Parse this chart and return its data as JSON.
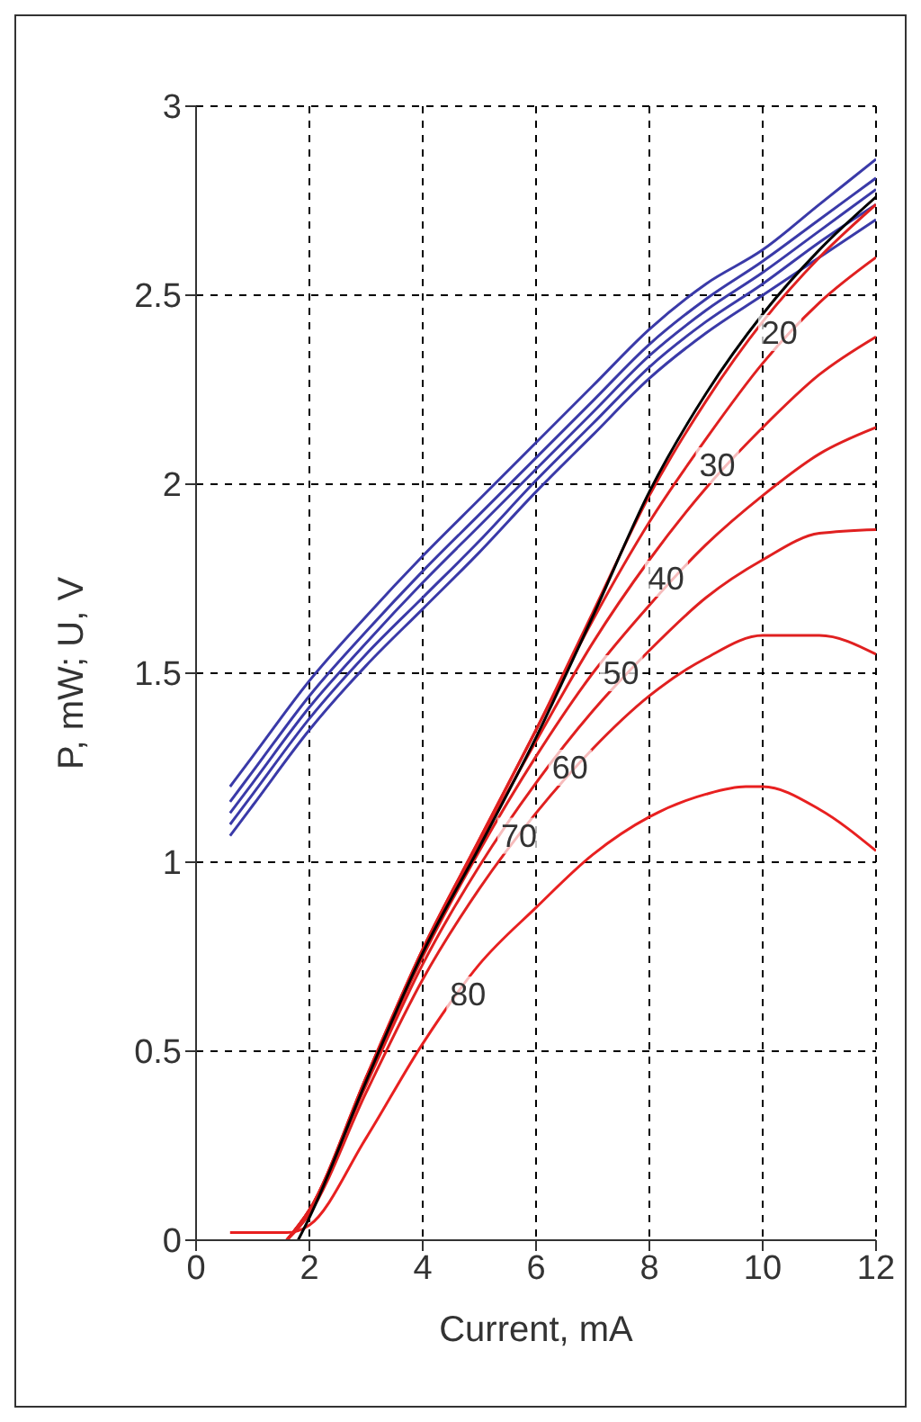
{
  "chart_data": {
    "type": "line",
    "xlabel": "Current, mA",
    "ylabel": "P, mW; U, V",
    "xlim": [
      0,
      12
    ],
    "ylim": [
      0,
      3
    ],
    "xticks": [
      0,
      2,
      4,
      6,
      8,
      10,
      12
    ],
    "yticks": [
      0,
      0.5,
      1,
      1.5,
      2,
      2.5,
      3
    ],
    "grid": true,
    "legend": false,
    "marker": "none",
    "line_style": "solid",
    "series": [
      {
        "color": "#3a3aa8",
        "x": [
          0.6,
          1,
          2,
          3,
          4,
          5,
          6,
          7,
          8,
          9,
          10,
          11,
          12
        ],
        "values": [
          1.07,
          1.15,
          1.35,
          1.52,
          1.67,
          1.82,
          1.98,
          2.13,
          2.28,
          2.4,
          2.5,
          2.6,
          2.7
        ]
      },
      {
        "color": "#3a3aa8",
        "x": [
          0.6,
          1,
          2,
          3,
          4,
          5,
          6,
          7,
          8,
          9,
          10,
          11,
          12
        ],
        "values": [
          1.1,
          1.18,
          1.38,
          1.55,
          1.7,
          1.85,
          2.01,
          2.16,
          2.31,
          2.43,
          2.53,
          2.64,
          2.74
        ]
      },
      {
        "color": "#3a3aa8",
        "x": [
          0.6,
          1,
          2,
          3,
          4,
          5,
          6,
          7,
          8,
          9,
          10,
          11,
          12
        ],
        "values": [
          1.13,
          1.21,
          1.41,
          1.58,
          1.74,
          1.89,
          2.04,
          2.19,
          2.34,
          2.46,
          2.56,
          2.67,
          2.78
        ]
      },
      {
        "color": "#3a3aa8",
        "x": [
          0.6,
          1,
          2,
          3,
          4,
          5,
          6,
          7,
          8,
          9,
          10,
          11,
          12
        ],
        "values": [
          1.16,
          1.24,
          1.44,
          1.61,
          1.77,
          1.92,
          2.07,
          2.22,
          2.37,
          2.49,
          2.59,
          2.7,
          2.81
        ]
      },
      {
        "color": "#3a3aa8",
        "x": [
          0.6,
          1,
          2,
          3,
          4,
          5,
          6,
          7,
          8,
          9,
          10,
          11,
          12
        ],
        "values": [
          1.2,
          1.28,
          1.48,
          1.65,
          1.81,
          1.96,
          2.11,
          2.26,
          2.41,
          2.53,
          2.62,
          2.74,
          2.86
        ]
      },
      {
        "color": "#e02020",
        "x": [
          1.6,
          2,
          3,
          4,
          5,
          6,
          7,
          8,
          9,
          10,
          11,
          12
        ],
        "values": [
          0,
          0.07,
          0.43,
          0.77,
          1.06,
          1.35,
          1.66,
          1.97,
          2.22,
          2.43,
          2.6,
          2.74
        ]
      },
      {
        "color": "#e02020",
        "x": [
          1.6,
          2,
          3,
          4,
          5,
          6,
          7,
          8,
          9,
          10,
          11,
          12
        ],
        "values": [
          0,
          0.08,
          0.43,
          0.77,
          1.06,
          1.35,
          1.64,
          1.9,
          2.12,
          2.32,
          2.48,
          2.6
        ]
      },
      {
        "color": "#e02020",
        "x": [
          1.6,
          2,
          3,
          4,
          5,
          6,
          7,
          8,
          9,
          10,
          11,
          12
        ],
        "values": [
          0,
          0.08,
          0.43,
          0.76,
          1.05,
          1.32,
          1.58,
          1.8,
          1.99,
          2.15,
          2.29,
          2.39
        ]
      },
      {
        "color": "#e02020",
        "x": [
          1.6,
          2,
          3,
          4,
          5,
          6,
          7,
          8,
          9,
          10,
          11,
          12
        ],
        "values": [
          0,
          0.08,
          0.42,
          0.75,
          1.03,
          1.28,
          1.5,
          1.68,
          1.84,
          1.97,
          2.08,
          2.15
        ]
      },
      {
        "color": "#e02020",
        "x": [
          1.6,
          2,
          3,
          4,
          5,
          6,
          7,
          8,
          9,
          10,
          11,
          12
        ],
        "values": [
          0,
          0.08,
          0.41,
          0.73,
          0.99,
          1.21,
          1.4,
          1.56,
          1.7,
          1.8,
          1.87,
          1.88
        ]
      },
      {
        "color": "#e02020",
        "x": [
          1.6,
          2,
          3,
          4,
          5,
          6,
          7,
          8,
          9,
          10,
          11,
          12
        ],
        "values": [
          0,
          0.07,
          0.39,
          0.69,
          0.93,
          1.13,
          1.3,
          1.44,
          1.54,
          1.6,
          1.6,
          1.55
        ]
      },
      {
        "color": "#e82020",
        "x": [
          0.6,
          1.6,
          2,
          3,
          4,
          5,
          6,
          7,
          8,
          9,
          9.7,
          10,
          11,
          12
        ],
        "values": [
          0.02,
          0.02,
          0.04,
          0.27,
          0.52,
          0.73,
          0.88,
          1.02,
          1.12,
          1.18,
          1.2,
          1.2,
          1.14,
          1.03
        ]
      },
      {
        "color": "#000000",
        "x": [
          1.8,
          2,
          3,
          4,
          5,
          6,
          7,
          8,
          9,
          10,
          11,
          12
        ],
        "values": [
          0,
          0.06,
          0.42,
          0.76,
          1.04,
          1.33,
          1.65,
          1.98,
          2.24,
          2.45,
          2.62,
          2.76
        ]
      }
    ],
    "annotations": [
      {
        "text": "20",
        "x": 10.3,
        "y": 2.4
      },
      {
        "text": "30",
        "x": 9.2,
        "y": 2.05
      },
      {
        "text": "40",
        "x": 8.3,
        "y": 1.75
      },
      {
        "text": "50",
        "x": 7.5,
        "y": 1.5
      },
      {
        "text": "60",
        "x": 6.6,
        "y": 1.25
      },
      {
        "text": "70",
        "x": 5.7,
        "y": 1.07
      },
      {
        "text": "80",
        "x": 4.8,
        "y": 0.65
      }
    ]
  }
}
